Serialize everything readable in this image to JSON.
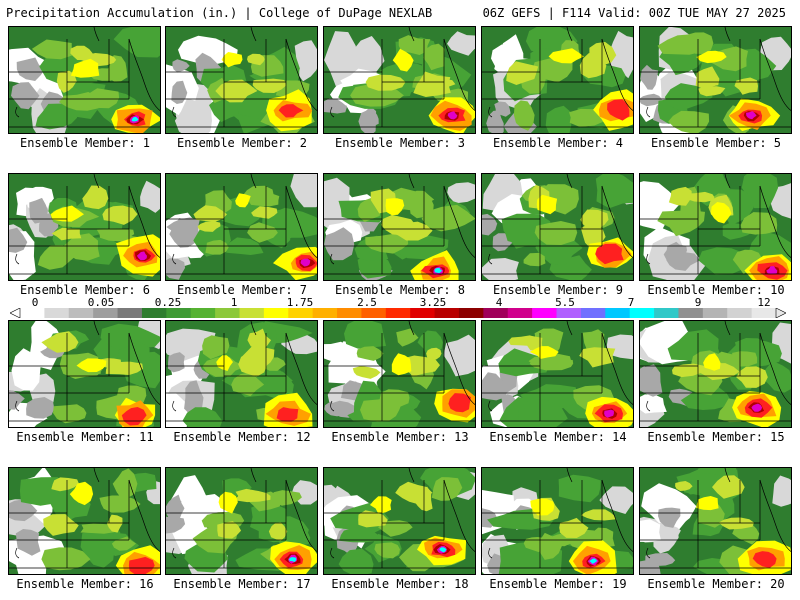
{
  "header": {
    "title": "Precipitation Accumulation (in.) | College of DuPage NEXLAB",
    "valid": "06Z GEFS | F114 Valid: 00Z TUE MAY 27 2025"
  },
  "label_prefix": "Ensemble Member: ",
  "members": [
    1,
    2,
    3,
    4,
    5,
    6,
    7,
    8,
    9,
    10,
    11,
    12,
    13,
    14,
    15,
    16,
    17,
    18,
    19,
    20
  ],
  "colorbar": {
    "tick_labels": [
      "0",
      "0.05",
      "0.25",
      "1",
      "1.75",
      "2.5",
      "3.25",
      "4",
      "5.5",
      "7",
      "9",
      "12"
    ],
    "colors": [
      "#ffffff",
      "#d9d9d9",
      "#bdbdbd",
      "#9e9e9e",
      "#7a7a7a",
      "#2f7d2f",
      "#3f9a34",
      "#56b231",
      "#8cc83a",
      "#c8e034",
      "#ffff00",
      "#ffd200",
      "#ffb000",
      "#ff8c00",
      "#ff6000",
      "#ff2a00",
      "#e00000",
      "#b80000",
      "#8c0000",
      "#a0005a",
      "#d0008c",
      "#ff00ff",
      "#b060ff",
      "#7070ff",
      "#00c8ff",
      "#00ffff",
      "#30c8c8",
      "#909090",
      "#b4b4b4",
      "#d2d2d2",
      "#e8e8e8"
    ]
  },
  "map_colors": {
    "white": "#ffffff",
    "light_gray": "#d8d8d8",
    "gray": "#a8a8a8",
    "dark_green": "#2f7d2f",
    "green": "#47a336",
    "light_green": "#7cc038",
    "yellow_green": "#c8e034",
    "yellow": "#ffff00",
    "orange": "#ffa000",
    "red": "#ff2020",
    "dark_red": "#b00000",
    "magenta": "#e000c8",
    "purple": "#9040ff",
    "cyan": "#00ffff",
    "light_cyan": "#80e8ff"
  }
}
